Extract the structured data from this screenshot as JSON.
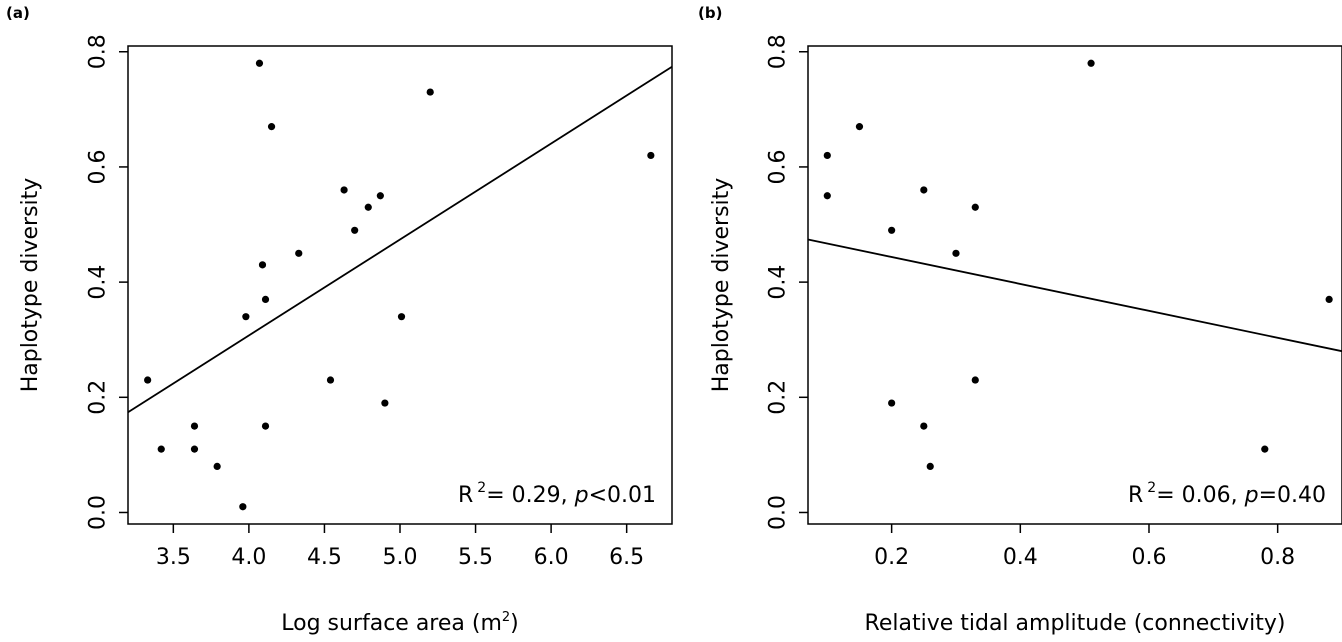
{
  "chart_data": [
    {
      "type": "scatter",
      "panel_label": "(a)",
      "xlabel": "Log surface area (m",
      "xlabel_sup": "2",
      "xlabel_close": ")",
      "ylabel": "Haplotype diversity",
      "xlim": [
        3.2,
        6.8
      ],
      "ylim": [
        -0.02,
        0.81
      ],
      "xticks": [
        3.5,
        4.0,
        4.5,
        5.0,
        5.5,
        6.0,
        6.5
      ],
      "xtick_labels": [
        "3.5",
        "4.0",
        "4.5",
        "5.0",
        "5.5",
        "6.0",
        "6.5"
      ],
      "yticks": [
        0.0,
        0.2,
        0.4,
        0.6,
        0.8
      ],
      "ytick_labels": [
        "0.0",
        "0.2",
        "0.4",
        "0.6",
        "0.8"
      ],
      "points": [
        {
          "x": 3.33,
          "y": 0.23
        },
        {
          "x": 3.42,
          "y": 0.11
        },
        {
          "x": 3.64,
          "y": 0.15
        },
        {
          "x": 3.64,
          "y": 0.11
        },
        {
          "x": 3.79,
          "y": 0.08
        },
        {
          "x": 3.96,
          "y": 0.01
        },
        {
          "x": 3.98,
          "y": 0.34
        },
        {
          "x": 4.07,
          "y": 0.78
        },
        {
          "x": 4.09,
          "y": 0.43
        },
        {
          "x": 4.11,
          "y": 0.37
        },
        {
          "x": 4.11,
          "y": 0.15
        },
        {
          "x": 4.15,
          "y": 0.67
        },
        {
          "x": 4.33,
          "y": 0.45
        },
        {
          "x": 4.54,
          "y": 0.23
        },
        {
          "x": 4.63,
          "y": 0.56
        },
        {
          "x": 4.7,
          "y": 0.49
        },
        {
          "x": 4.79,
          "y": 0.53
        },
        {
          "x": 4.87,
          "y": 0.55
        },
        {
          "x": 4.9,
          "y": 0.19
        },
        {
          "x": 5.01,
          "y": 0.34
        },
        {
          "x": 5.2,
          "y": 0.73
        },
        {
          "x": 6.66,
          "y": 0.62
        }
      ],
      "fit_line": {
        "x": [
          3.2,
          6.8
        ],
        "y": [
          0.174,
          0.774
        ]
      },
      "annotation": {
        "r2_prefix": "R",
        "r2_sup": "2",
        "r2_value": "= 0.29, ",
        "p_symbol": "p",
        "p_value": "<0.01"
      }
    },
    {
      "type": "scatter",
      "panel_label": "(b)",
      "xlabel": "Relative tidal amplitude (connectivity)",
      "ylabel": "Haplotype diversity",
      "xlim": [
        0.07,
        0.9
      ],
      "ylim": [
        -0.02,
        0.81
      ],
      "xticks": [
        0.2,
        0.4,
        0.6,
        0.8
      ],
      "xtick_labels": [
        "0.2",
        "0.4",
        "0.6",
        "0.8"
      ],
      "yticks": [
        0.0,
        0.2,
        0.4,
        0.6,
        0.8
      ],
      "ytick_labels": [
        "0.0",
        "0.2",
        "0.4",
        "0.6",
        "0.8"
      ],
      "points": [
        {
          "x": 0.1,
          "y": 0.62
        },
        {
          "x": 0.1,
          "y": 0.55
        },
        {
          "x": 0.15,
          "y": 0.67
        },
        {
          "x": 0.2,
          "y": 0.49
        },
        {
          "x": 0.2,
          "y": 0.19
        },
        {
          "x": 0.25,
          "y": 0.56
        },
        {
          "x": 0.25,
          "y": 0.15
        },
        {
          "x": 0.26,
          "y": 0.08
        },
        {
          "x": 0.3,
          "y": 0.45
        },
        {
          "x": 0.33,
          "y": 0.53
        },
        {
          "x": 0.33,
          "y": 0.23
        },
        {
          "x": 0.51,
          "y": 0.78
        },
        {
          "x": 0.78,
          "y": 0.11
        },
        {
          "x": 0.88,
          "y": 0.37
        }
      ],
      "fit_line": {
        "x": [
          0.07,
          0.9
        ],
        "y": [
          0.474,
          0.28
        ]
      },
      "annotation": {
        "r2_prefix": "R",
        "r2_sup": "2",
        "r2_value": "= 0.06, ",
        "p_symbol": "p",
        "p_value": "=0.40"
      }
    }
  ]
}
